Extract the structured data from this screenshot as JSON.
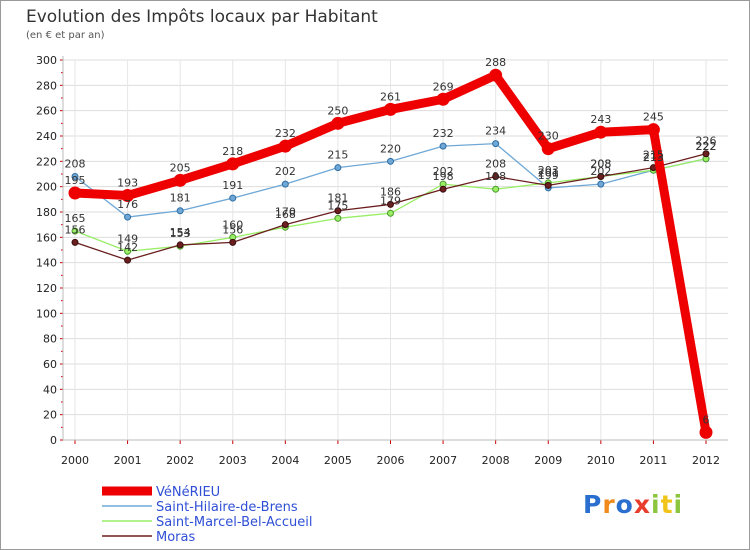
{
  "chart_data": {
    "type": "line",
    "title": "Evolution des Impôts locaux par Habitant",
    "subtitle": "(en € et par an)",
    "xlabel": "",
    "ylabel": "",
    "ylim": [
      0,
      300
    ],
    "yticks": [
      0,
      20,
      40,
      60,
      80,
      100,
      120,
      140,
      160,
      180,
      200,
      220,
      240,
      260,
      280,
      300
    ],
    "categories": [
      "2000",
      "2001",
      "2002",
      "2003",
      "2004",
      "2005",
      "2006",
      "2007",
      "2008",
      "2009",
      "2010",
      "2011",
      "2012"
    ],
    "grid": true,
    "legend_position": "bottom-left",
    "series": [
      {
        "name": "VéNéRIEU",
        "color": "#ee0000",
        "values": [
          195,
          193,
          205,
          218,
          232,
          250,
          261,
          269,
          288,
          230,
          243,
          245,
          6
        ]
      },
      {
        "name": "Saint-Hilaire-de-Brens",
        "color": "#6fa8d6",
        "values": [
          208,
          176,
          181,
          191,
          202,
          215,
          220,
          232,
          234,
          199,
          202,
          213,
          222
        ]
      },
      {
        "name": "Saint-Marcel-Bel-Accueil",
        "color": "#99ee66",
        "values": [
          165,
          149,
          153,
          160,
          168,
          175,
          179,
          202,
          198,
          203,
          208,
          213,
          222
        ]
      },
      {
        "name": "Moras",
        "color": "#6b1f1f",
        "values": [
          156,
          142,
          154,
          156,
          170,
          181,
          186,
          198,
          208,
          201,
          208,
          215,
          226
        ]
      }
    ]
  },
  "branding": {
    "logo_letters": [
      "P",
      "r",
      "o",
      "x",
      "i",
      "t",
      "i"
    ],
    "logo_colors": [
      "#2a6fcf",
      "#f08a1c",
      "#2a6fcf",
      "#e83c2c",
      "#8cc63f",
      "#f0c419",
      "#8cc63f"
    ]
  }
}
